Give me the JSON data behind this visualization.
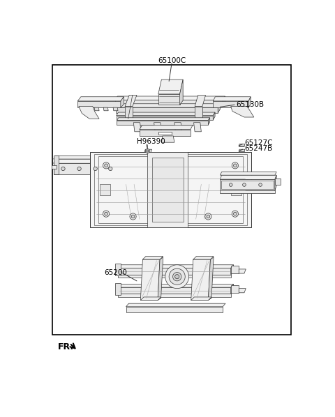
{
  "bg_color": "#ffffff",
  "border_color": "#000000",
  "text_color": "#000000",
  "lc": "#333333",
  "lw_thin": 0.5,
  "lw_med": 0.7,
  "lw_thick": 1.0,
  "fc_light": "#f0f0f0",
  "fc_mid": "#e0e0e0",
  "fc_dark": "#c8c8c8",
  "fc_white": "#ffffff",
  "title_above": "65100C",
  "label_65130B": "65130B",
  "label_H96390": "H96390",
  "label_65127C": "65127C",
  "label_65247B": "65247B",
  "label_65200": "65200",
  "label_FR": "FR.",
  "fs": 7.5,
  "figsize": [
    4.8,
    5.98
  ],
  "dpi": 100
}
